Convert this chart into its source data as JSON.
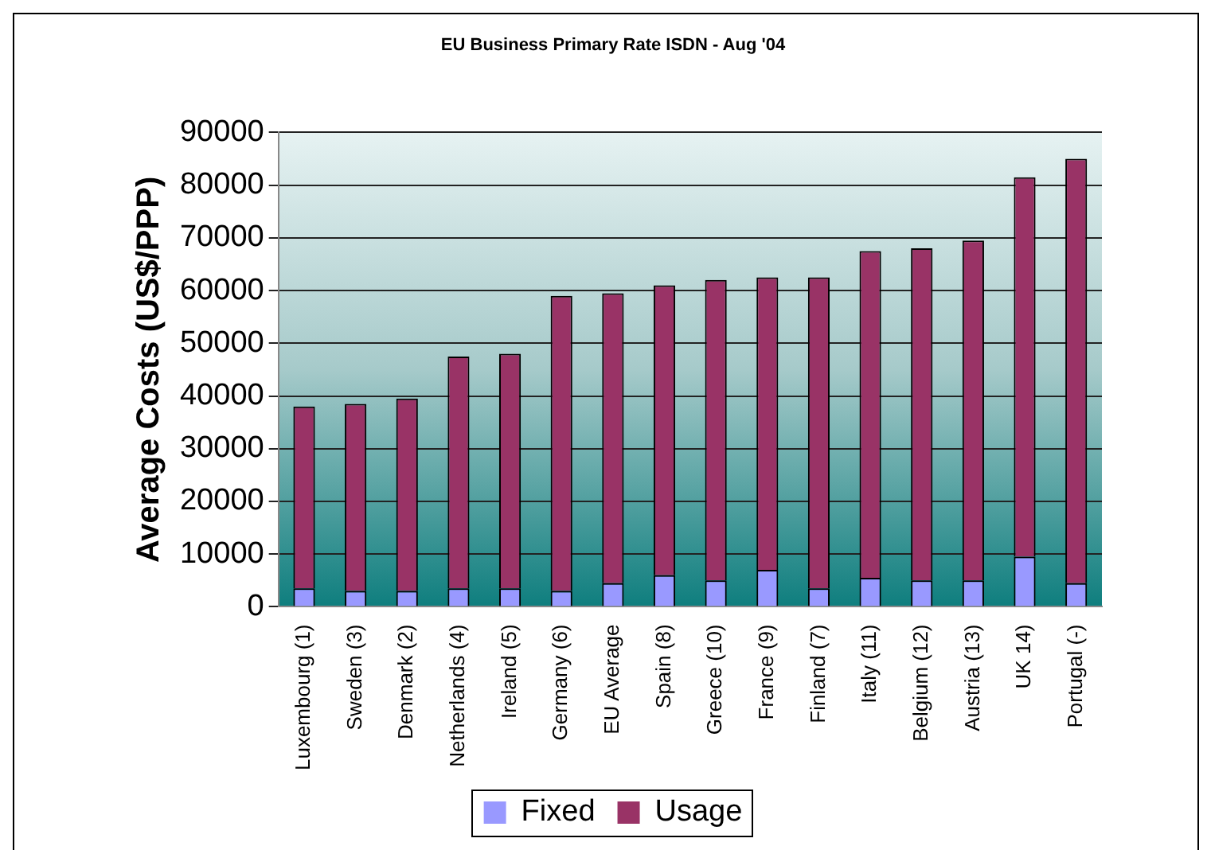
{
  "chart_data": {
    "type": "bar",
    "title": "EU Business Primary Rate ISDN - Aug '04",
    "ylabel": "Average Costs (US$/PPP)",
    "categories": [
      "Luxembourg (1)",
      "Sweden (3)",
      "Denmark (2)",
      "Netherlands (4)",
      "Ireland (5)",
      "Germany (6)",
      "EU Average",
      "Spain (8)",
      "Greece (10)",
      "France (9)",
      "Finland (7)",
      "Italy (11)",
      "Belgium (12)",
      "Austria (13)",
      "UK 14)",
      "Portugal (-)"
    ],
    "series": [
      {
        "name": "Fixed",
        "color": "#9999ff",
        "values": [
          3500,
          3000,
          3000,
          3500,
          3500,
          3000,
          4500,
          6000,
          5000,
          7000,
          3500,
          5500,
          5000,
          5000,
          9500,
          4500
        ]
      },
      {
        "name": "Usage",
        "color": "#993366",
        "values": [
          34500,
          35500,
          36500,
          44000,
          44500,
          56000,
          55000,
          55000,
          57000,
          55500,
          59000,
          62000,
          63000,
          64500,
          72000,
          80500
        ]
      }
    ],
    "stacked": true,
    "ylim": [
      0,
      90000
    ],
    "yticks": [
      0,
      10000,
      20000,
      30000,
      40000,
      50000,
      60000,
      70000,
      80000,
      90000
    ],
    "grid": "y",
    "legend": "bottom"
  }
}
